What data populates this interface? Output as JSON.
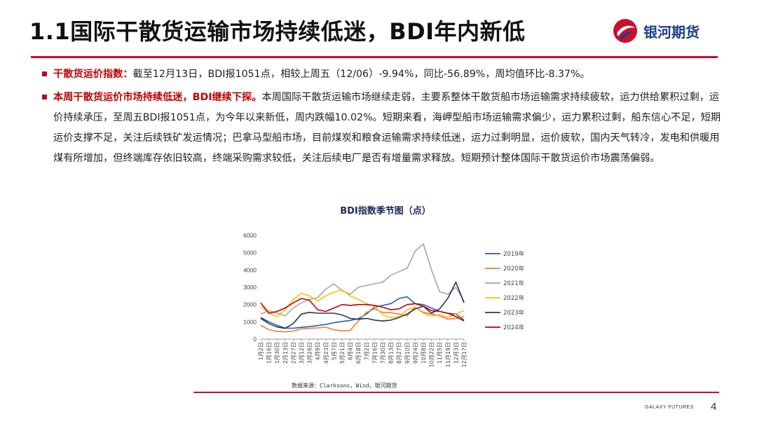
{
  "header": {
    "title": "1.1国际干散货运输市场持续低迷，BDI年内新低",
    "logo_text": "银河期货"
  },
  "bullets": [
    {
      "lead": "干散货运价指数：",
      "text": "截至12月13日，BDI报1051点，相较上周五（12/06）-9.94%，同比-56.89%，周均值环比-8.37%。"
    },
    {
      "lead": "本周干散货运价市场持续低迷，BDI继续下探。",
      "text": "本周国际干散货运输市场继续走弱，主要系整体干散货船市场运输需求持续疲软，运力供给累积过剩，运价持续承压，至周五BDI报1051点，为今年以来新低，周内跌幅10.02%。短期来看，海岬型船市场运输需求偏少，运力累积过剩，船东信心不足，短期运价支撑不足，关注后续铁矿发运情况；巴拿马型船市场，目前煤炭和粮食运输需求持续低迷，运力过剩明显，运价疲软，国内天气转冷，发电和供暖用煤有所增加，但终端库存依旧较高，终端采购需求较低，关注后续电厂是否有增量需求释放。短期预计整体国际干散货运价市场震荡偏弱。"
    }
  ],
  "chart_title": "BDI指数季节图（点）",
  "chart_source": "数据来源：Clarksons，Wind，银河期货",
  "footer": {
    "brand": "GALAXY FUTURES",
    "page": "4"
  },
  "colors": {
    "accent": "#c8102e",
    "title_blue": "#1c3f8c"
  },
  "chart_data": {
    "type": "line",
    "title": "BDI指数季节图（点）",
    "xlabel": "",
    "ylabel": "",
    "ylim": [
      0,
      6000
    ],
    "yticks": [
      0,
      1000,
      2000,
      3000,
      4000,
      5000,
      6000
    ],
    "x_ticks": [
      "1月2日",
      "1月16日",
      "1月30日",
      "2月13日",
      "2月27日",
      "3月12日",
      "3月26日",
      "4月9日",
      "4月23日",
      "5月7日",
      "5月21日",
      "6月4日",
      "6月18日",
      "7月2日",
      "7月16日",
      "7月30日",
      "8月13日",
      "8月27日",
      "9月10日",
      "9月24日",
      "10月8日",
      "10月22日",
      "11月5日",
      "11月19日",
      "12月3日",
      "12月17日"
    ],
    "legend_position": "right",
    "grid": false,
    "series": [
      {
        "name": "2019年",
        "color": "#1f5fa8",
        "values": [
          1250,
          1000,
          800,
          640,
          630,
          680,
          720,
          780,
          850,
          950,
          1020,
          1080,
          1180,
          1450,
          1850,
          1950,
          2050,
          2350,
          2450,
          2050,
          2000,
          1800,
          1600,
          1500,
          1450,
          1100
        ]
      },
      {
        "name": "2020年",
        "color": "#ed7d31",
        "values": [
          800,
          550,
          450,
          420,
          470,
          590,
          620,
          650,
          690,
          540,
          480,
          500,
          1050,
          1550,
          1750,
          1550,
          1520,
          1450,
          1350,
          1850,
          1550,
          1450,
          1350,
          1150,
          1200,
          1300
        ]
      },
      {
        "name": "2021年",
        "color": "#a6a6a6",
        "values": [
          1450,
          1650,
          1500,
          1350,
          1800,
          2100,
          2300,
          2400,
          2900,
          3200,
          2800,
          2600,
          3000,
          3100,
          3200,
          3300,
          3700,
          3900,
          4100,
          5100,
          5500,
          4000,
          2750,
          2600,
          3000,
          2200
        ]
      },
      {
        "name": "2022年",
        "color": "#ffc000",
        "values": [
          1900,
          1500,
          1300,
          1700,
          2300,
          2650,
          2500,
          2200,
          2500,
          2700,
          2850,
          2500,
          2300,
          2050,
          1900,
          1400,
          1250,
          1300,
          1700,
          1850,
          1500,
          1350,
          1400,
          1250,
          1450,
          1650
        ]
      },
      {
        "name": "2023年",
        "color": "#203864",
        "values": [
          1200,
          900,
          700,
          620,
          900,
          1450,
          1550,
          1500,
          1500,
          1500,
          1400,
          1200,
          1150,
          1200,
          1100,
          1050,
          1100,
          1250,
          1450,
          1750,
          1900,
          1500,
          1750,
          2350,
          3300,
          2100
        ]
      },
      {
        "name": "2024年",
        "color": "#c00000",
        "values": [
          2100,
          1500,
          1600,
          1800,
          2100,
          2350,
          2250,
          1700,
          1600,
          1800,
          2000,
          1950,
          2000,
          2000,
          1950,
          1850,
          1700,
          1750,
          2000,
          2050,
          1900,
          1650,
          1600,
          1500,
          1300,
          1051
        ]
      }
    ]
  }
}
